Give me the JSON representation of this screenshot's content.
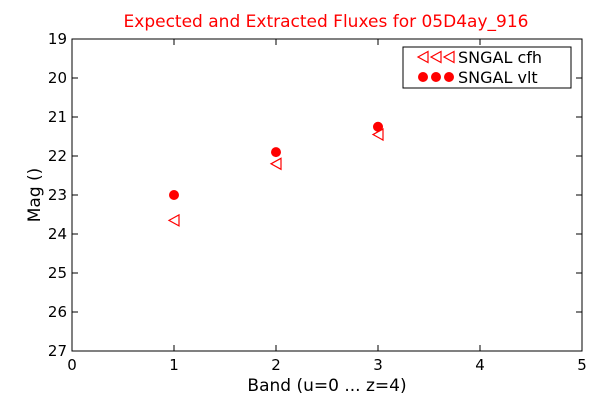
{
  "colors": {
    "series": "#ff0000",
    "title": "#ff0000",
    "axes": "#000000",
    "background": "#ffffff"
  },
  "chart_data": {
    "type": "scatter",
    "title": "Expected and Extracted Fluxes for 05D4ay_916",
    "xlabel": "Band (u=0 ... z=4)",
    "ylabel": "Mag ()",
    "xlim": [
      0,
      5
    ],
    "ylim": [
      27,
      19
    ],
    "y_inverted": true,
    "xticks": [
      "0",
      "1",
      "2",
      "3",
      "4",
      "5"
    ],
    "yticks": [
      "19",
      "20",
      "21",
      "22",
      "23",
      "24",
      "25",
      "26",
      "27"
    ],
    "grid": false,
    "legend_position": "top-right",
    "series": [
      {
        "name": "SNGAL cfh",
        "marker": "triangle-left-open",
        "color": "#ff0000",
        "x": [
          1,
          2,
          3
        ],
        "y": [
          23.65,
          22.2,
          21.45
        ]
      },
      {
        "name": "SNGAL vlt",
        "marker": "circle-filled",
        "color": "#ff0000",
        "x": [
          1,
          2,
          3
        ],
        "y": [
          23.0,
          21.9,
          21.25
        ]
      }
    ]
  }
}
